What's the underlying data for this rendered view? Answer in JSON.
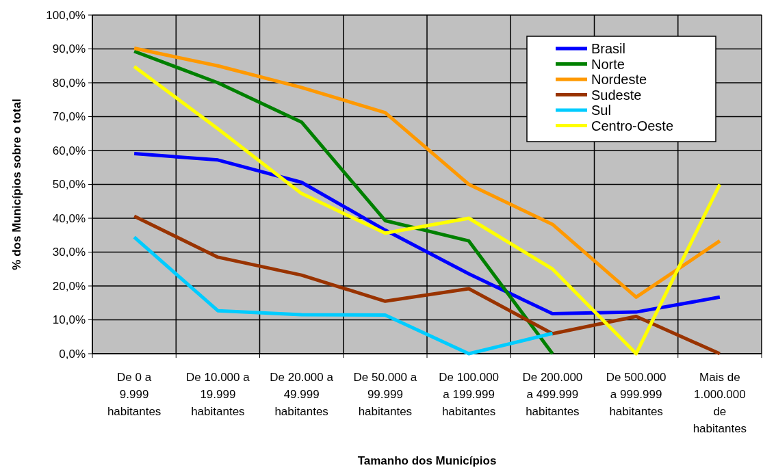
{
  "chart_data": {
    "type": "line",
    "xlabel": "Tamanho dos Municípios",
    "ylabel": "% dos Municípios sobre o total",
    "categories": [
      "De 0 a 9.999 habitantes",
      "De 10.000 a 19.999 habitantes",
      "De 20.000 a 49.999 habitantes",
      "De 50.000 a 99.999 habitantes",
      "De 100.000 a 199.999 habitantes",
      "De 200.000 a 499.999 habitantes",
      "De 500.000 a 999.999 habitantes",
      "Mais de 1.000.000 de habitantes"
    ],
    "series": [
      {
        "name": "Brasil",
        "color": "#0000ff",
        "values": [
          59.1,
          57.2,
          50.6,
          36.5,
          23.6,
          11.8,
          12.3,
          16.7
        ]
      },
      {
        "name": "Norte",
        "color": "#008000",
        "values": [
          89.3,
          80.0,
          68.4,
          39.3,
          33.3,
          0,
          null,
          null
        ]
      },
      {
        "name": "Nordeste",
        "color": "#ff9900",
        "values": [
          90.2,
          85.0,
          78.6,
          71.2,
          50.0,
          38.2,
          16.7,
          33.3
        ]
      },
      {
        "name": "Sudeste",
        "color": "#993300",
        "values": [
          40.6,
          28.5,
          23.2,
          15.5,
          19.2,
          5.9,
          11.0,
          0
        ]
      },
      {
        "name": "Sul",
        "color": "#00ccff",
        "values": [
          34.4,
          12.7,
          11.5,
          11.4,
          0,
          6.0,
          null,
          null
        ]
      },
      {
        "name": "Centro-Oeste",
        "color": "#ffff00",
        "values": [
          84.8,
          66.4,
          47.3,
          35.6,
          40.0,
          25.0,
          0,
          50.0
        ]
      }
    ],
    "ylim": [
      0,
      100
    ],
    "yticks": [
      {
        "value": 0,
        "label": "0,0%"
      },
      {
        "value": 10,
        "label": "10,0%"
      },
      {
        "value": 20,
        "label": "20,0%"
      },
      {
        "value": 30,
        "label": "30,0%"
      },
      {
        "value": 40,
        "label": "40,0%"
      },
      {
        "value": 50,
        "label": "50,0%"
      },
      {
        "value": 60,
        "label": "60,0%"
      },
      {
        "value": 70,
        "label": "70,0%"
      },
      {
        "value": 80,
        "label": "80,0%"
      },
      {
        "value": 90,
        "label": "90,0%"
      },
      {
        "value": 100,
        "label": "100,0%"
      }
    ],
    "grid": true,
    "legend": "top right",
    "marker": "none",
    "line_style": "solid"
  }
}
